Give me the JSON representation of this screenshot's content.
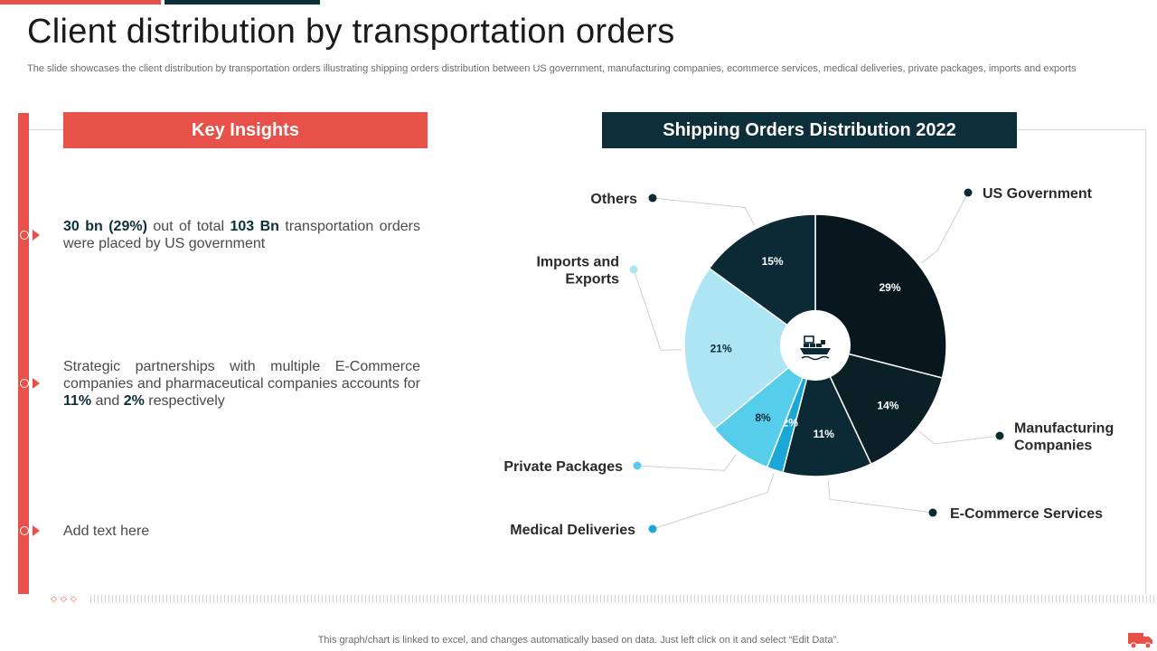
{
  "page": {
    "title": "Client distribution by transportation orders",
    "subtitle": "The slide showcases the client distribution by transportation orders illustrating shipping orders distribution between US government, manufacturing companies, ecommerce services, medical deliveries, private packages, imports and exports",
    "footer": "This graph/chart is linked to excel,  and changes automatically based on data. Just left click on it and select “Edit Data”."
  },
  "insights": {
    "header": "Key Insights",
    "items": [
      {
        "parts": [
          {
            "text": "30 bn (29%)",
            "bold": true
          },
          {
            "text": " out of total ",
            "bold": false
          },
          {
            "text": "103 Bn",
            "bold": true
          },
          {
            "text": " transportation orders were placed by US government",
            "bold": false
          }
        ]
      },
      {
        "parts": [
          {
            "text": "Strategic partnerships with multiple E-Commerce companies and pharmaceutical companies accounts for ",
            "bold": false
          },
          {
            "text": "11%",
            "bold": true
          },
          {
            "text": " and ",
            "bold": false
          },
          {
            "text": "2%",
            "bold": true
          },
          {
            "text": " respectively",
            "bold": false
          }
        ]
      },
      {
        "parts": [
          {
            "text": "Add  text  here",
            "bold": false
          }
        ]
      }
    ]
  },
  "colors": {
    "accent_red": "#e8504a",
    "dark_teal": "#0c2f3a"
  },
  "chart_data": {
    "type": "pie",
    "title": "Shipping Orders Distribution 2022",
    "start": "12 o'clock",
    "direction": "clockwise",
    "slices": [
      {
        "name": "US Government",
        "value": 29,
        "label": "29%",
        "color": "#07171d"
      },
      {
        "name": "Manufacturing Companies",
        "value": 14,
        "label": "14%",
        "color": "#0b1f27"
      },
      {
        "name": "E-Commerce Services",
        "value": 11,
        "label": "11%",
        "color": "#0b2a35"
      },
      {
        "name": "Medical Deliveries",
        "value": 2,
        "label": "2%",
        "color": "#1aa6d6"
      },
      {
        "name": "Private Packages",
        "value": 8,
        "label": "8%",
        "color": "#56cdea"
      },
      {
        "name": "Imports and Exports",
        "value": 21,
        "label": "21%",
        "color": "#aee5f5"
      },
      {
        "name": "Others",
        "value": 15,
        "label": "15%",
        "color": "#0b2a35"
      }
    ],
    "center_icon": "cargo-ship-icon"
  }
}
